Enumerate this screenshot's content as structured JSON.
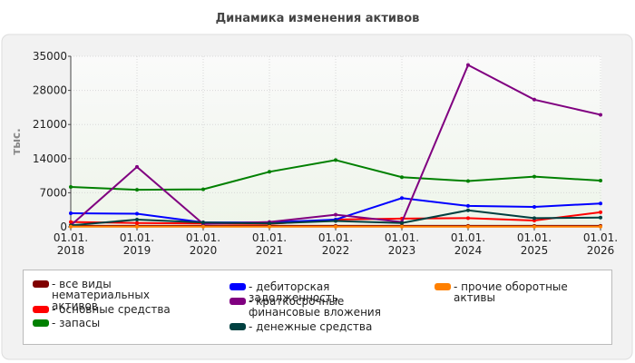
{
  "chart_data": {
    "type": "line",
    "title": "Динамика изменения активов",
    "ylabel": "тыс.",
    "categories": [
      "01.01. 2018",
      "01.01. 2019",
      "01.01. 2020",
      "01.01. 2021",
      "01.01. 2022",
      "01.01. 2023",
      "01.01. 2024",
      "01.01. 2025",
      "01.01. 2026"
    ],
    "ylim": [
      0,
      35000
    ],
    "yticks": [
      0,
      7000,
      14000,
      21000,
      28000,
      35000
    ],
    "grid": true,
    "series": [
      {
        "name": "все виды нематериальных активов",
        "color": "#800000",
        "values": [
          200,
          200,
          200,
          200,
          200,
          200,
          200,
          200,
          200
        ]
      },
      {
        "name": "основные средства",
        "color": "#ff0000",
        "values": [
          1000,
          800,
          700,
          600,
          1500,
          1700,
          1800,
          1300,
          3000
        ]
      },
      {
        "name": "запасы",
        "color": "#008000",
        "values": [
          8200,
          7600,
          7700,
          11300,
          13700,
          10200,
          9400,
          10300,
          9500
        ]
      },
      {
        "name": "дебиторская задолженность",
        "color": "#0000ff",
        "values": [
          2800,
          2700,
          900,
          900,
          1500,
          5900,
          4300,
          4100,
          4800
        ]
      },
      {
        "name": "краткосрочные финансовые вложения",
        "color": "#800080",
        "values": [
          300,
          12300,
          600,
          1000,
          2500,
          1000,
          33200,
          26100,
          23000
        ]
      },
      {
        "name": "денежные средства",
        "color": "#004040",
        "values": [
          300,
          1500,
          900,
          700,
          1200,
          800,
          3400,
          1800,
          1900
        ]
      },
      {
        "name": "прочие оборотные активы",
        "color": "#ff8000",
        "values": [
          50,
          50,
          50,
          50,
          50,
          50,
          50,
          50,
          50
        ]
      }
    ]
  }
}
